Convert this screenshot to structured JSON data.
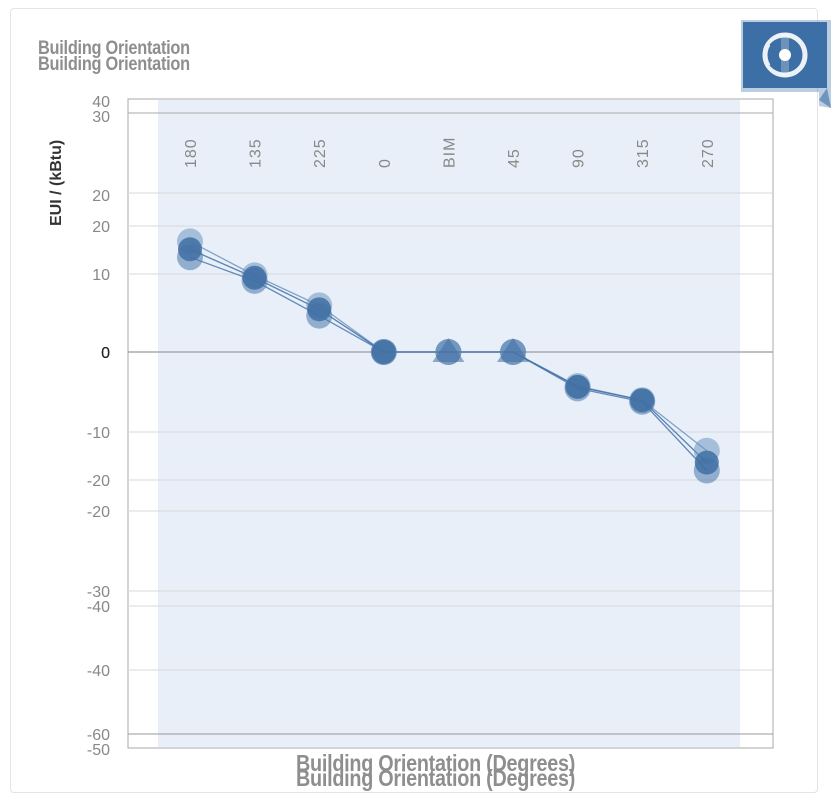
{
  "chart_data": {
    "type": "line",
    "title": "Building Orientation",
    "xlabel": "Building Orientation (Degrees)",
    "ylabel": "EUI / (kBtu)",
    "categories": [
      "180",
      "135",
      "225",
      "0",
      "BIM",
      "45",
      "90",
      "315",
      "270"
    ],
    "series": [
      {
        "values": [
          14,
          9.7,
          5.9,
          0,
          0,
          0,
          -4.3,
          -6.1,
          -12.5
        ],
        "marker": "circle",
        "color": "#6e95c0"
      },
      {
        "values": [
          12,
          9,
          4.6,
          0,
          0,
          0,
          -4.6,
          -6.3,
          -15
        ],
        "marker": "circle",
        "color": "#4a78ab"
      },
      {
        "values": [
          13,
          9.4,
          5.4,
          0,
          0,
          0,
          -4.4,
          -6.1,
          -14
        ],
        "marker": "triangle",
        "color": "#3f6ea3"
      }
    ],
    "y_ticks_primary": [
      "30",
      "20",
      "10",
      "0",
      "-10",
      "-20",
      "-30",
      "-40",
      "-50"
    ],
    "y_ticks_secondary": [
      "40",
      "20",
      "0",
      "-20",
      "-40",
      "-60"
    ],
    "ylim": [
      -50,
      30
    ],
    "grid": true,
    "legend": "none"
  },
  "colors": {
    "plot_band": "#e8eff8",
    "grid": "#d9d9d9",
    "axis": "#aaaaaa",
    "zero_line": "#9a9a9a",
    "badge": "#3c6fa5"
  },
  "icons": {
    "badge": "circular-arrows-icon"
  }
}
